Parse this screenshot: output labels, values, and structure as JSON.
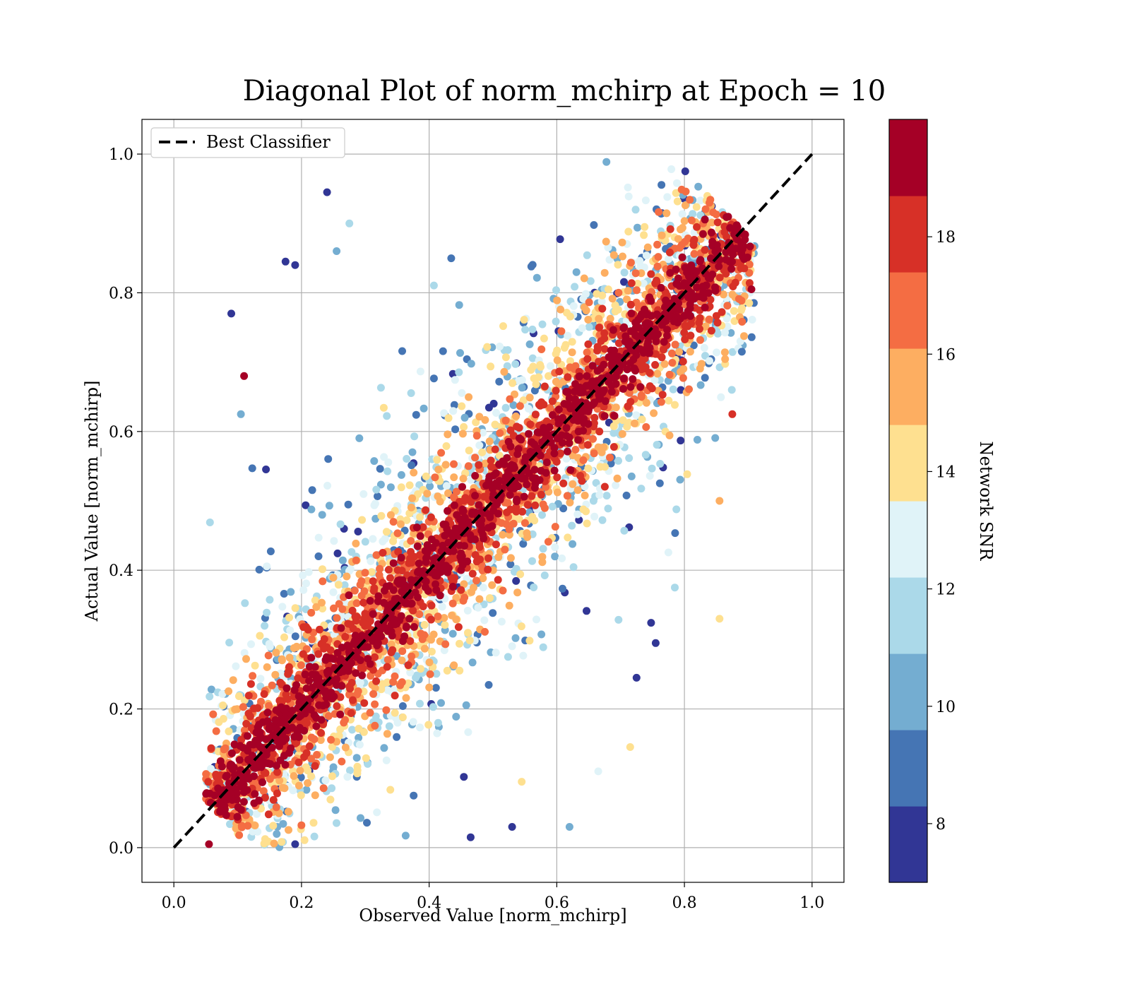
{
  "chart_data": {
    "type": "scatter",
    "title": "Diagonal Plot of norm_mchirp at Epoch = 10",
    "xlabel": "Observed Value [norm_mchirp]",
    "ylabel": "Actual Value [norm_mchirp]",
    "xlim": [
      -0.05,
      1.05
    ],
    "ylim": [
      -0.05,
      1.05
    ],
    "xticks": [
      "0.0",
      "0.2",
      "0.4",
      "0.6",
      "0.8",
      "1.0"
    ],
    "yticks": [
      "0.0",
      "0.2",
      "0.4",
      "0.6",
      "0.8",
      "1.0"
    ],
    "grid": true,
    "legend": {
      "label": "Best Classifier",
      "position": "top-left",
      "line_style": "dashed",
      "color": "#000000"
    },
    "reference_line": {
      "x": [
        0.0,
        1.0
      ],
      "y": [
        0.0,
        1.0
      ]
    },
    "colorbar": {
      "label": "Network SNR",
      "range": [
        7,
        20
      ],
      "ticks": [
        "8",
        "10",
        "12",
        "14",
        "16",
        "18"
      ],
      "tick_values": [
        8,
        10,
        12,
        14,
        16,
        18
      ],
      "colors": [
        "#313695",
        "#4575b4",
        "#74add1",
        "#abd9e9",
        "#e0f3f8",
        "#fee090",
        "#fdae61",
        "#f46d43",
        "#d73027",
        "#a50026"
      ]
    },
    "scatter_summary": {
      "description_of_distribution": "dense band of points along the diagonal; high-SNR points concentrated near the diagonal, low-SNR points spread farther away",
      "x_range": [
        0.05,
        0.91
      ],
      "y_range": [
        0.0,
        0.99
      ],
      "dominant_color": "#a50026"
    },
    "sample_outliers": [
      {
        "x": 0.09,
        "y": 0.77,
        "snr": 7.5
      },
      {
        "x": 0.11,
        "y": 0.68,
        "snr": 19.5
      },
      {
        "x": 0.105,
        "y": 0.625,
        "snr": 10.5
      },
      {
        "x": 0.24,
        "y": 0.945,
        "snr": 7.5
      },
      {
        "x": 0.19,
        "y": 0.84,
        "snr": 7.5
      },
      {
        "x": 0.175,
        "y": 0.845,
        "snr": 7.5
      },
      {
        "x": 0.275,
        "y": 0.9,
        "snr": 11.5
      },
      {
        "x": 0.255,
        "y": 0.86,
        "snr": 10.0
      },
      {
        "x": 0.905,
        "y": 0.805,
        "snr": 19.5
      },
      {
        "x": 0.89,
        "y": 0.715,
        "snr": 9.0
      },
      {
        "x": 0.875,
        "y": 0.625,
        "snr": 18.0
      },
      {
        "x": 0.855,
        "y": 0.5,
        "snr": 15.0
      },
      {
        "x": 0.855,
        "y": 0.33,
        "snr": 14.0
      },
      {
        "x": 0.785,
        "y": 0.375,
        "snr": 11.5
      },
      {
        "x": 0.755,
        "y": 0.295,
        "snr": 7.5
      },
      {
        "x": 0.725,
        "y": 0.245,
        "snr": 7.5
      },
      {
        "x": 0.715,
        "y": 0.145,
        "snr": 14.5
      },
      {
        "x": 0.665,
        "y": 0.11,
        "snr": 12.5
      },
      {
        "x": 0.62,
        "y": 0.03,
        "snr": 10.5
      },
      {
        "x": 0.545,
        "y": 0.095,
        "snr": 14.5
      },
      {
        "x": 0.53,
        "y": 0.03,
        "snr": 7.5
      },
      {
        "x": 0.465,
        "y": 0.015,
        "snr": 7.5
      },
      {
        "x": 0.055,
        "y": 0.005,
        "snr": 19.5
      },
      {
        "x": 0.19,
        "y": 0.005,
        "snr": 7.5
      }
    ]
  }
}
